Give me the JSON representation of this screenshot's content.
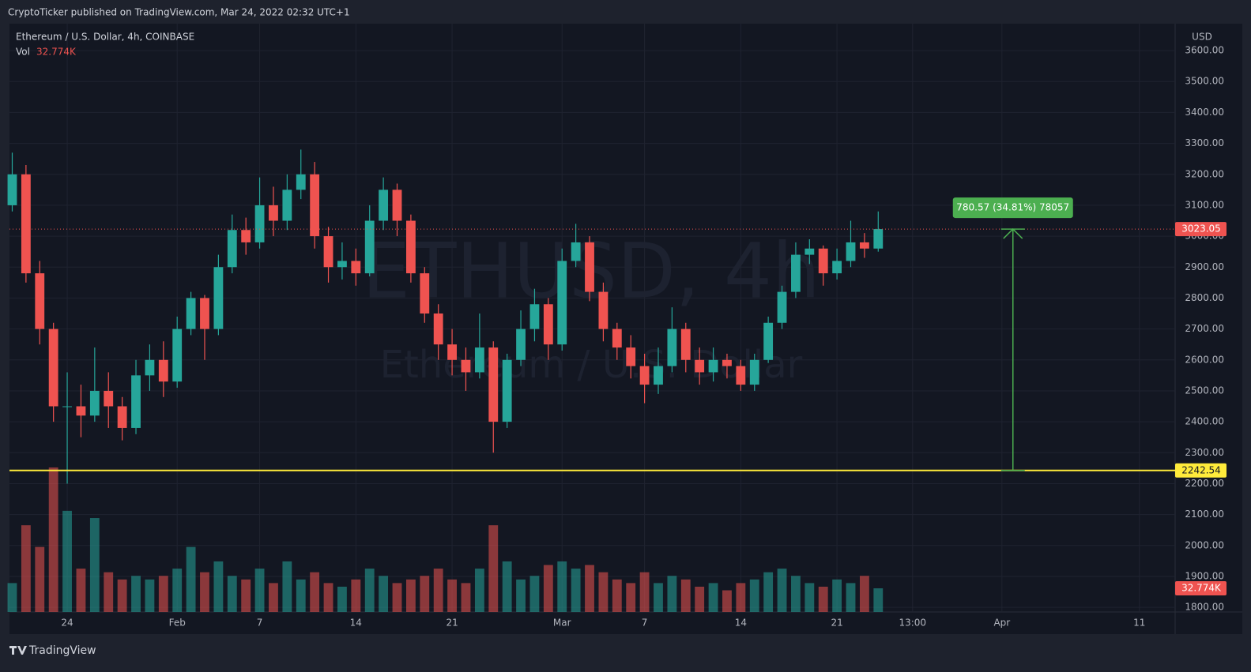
{
  "header": {
    "text": "CryptoTicker published on TradingView.com, Mar 24, 2022 02:32 UTC+1"
  },
  "footer": {
    "brand": "TradingView"
  },
  "chart_data": {
    "type": "candlestick",
    "title": "Ethereum / U.S. Dollar, 4h, COINBASE",
    "watermark": [
      "ETHUSD, 4h",
      "Ethereum / U.S. Dollar"
    ],
    "currency": "USD",
    "up_color": "#26a69a",
    "down_color": "#ef5350",
    "grid": true,
    "x": [
      -4,
      -3,
      -2,
      -1,
      0,
      1,
      2,
      3,
      4,
      5,
      6,
      7,
      8,
      9,
      10,
      11,
      12,
      13,
      14,
      15,
      16,
      17,
      18,
      19,
      20,
      21,
      22,
      23,
      24,
      25,
      26,
      27,
      28,
      29,
      30,
      31,
      32,
      33,
      34,
      35,
      36,
      37,
      38,
      39,
      40,
      41,
      42,
      43,
      44,
      45,
      46,
      47,
      48,
      49,
      50,
      51,
      52,
      53,
      54,
      55,
      56,
      57,
      58,
      59
    ],
    "open": [
      3100,
      3200,
      2880,
      2700,
      2450,
      2450,
      2420,
      2500,
      2450,
      2380,
      2550,
      2600,
      2530,
      2700,
      2800,
      2700,
      2900,
      3020,
      2980,
      3100,
      3050,
      3150,
      3200,
      3000,
      2900,
      2920,
      2880,
      3050,
      3150,
      3050,
      2880,
      2750,
      2650,
      2600,
      2560,
      2640,
      2400,
      2600,
      2700,
      2780,
      2650,
      2920,
      2980,
      2820,
      2700,
      2640,
      2580,
      2520,
      2580,
      2700,
      2600,
      2560,
      2600,
      2580,
      2520,
      2600,
      2720,
      2820,
      2940,
      2960,
      2880,
      2920,
      2980,
      2960
    ],
    "high": [
      3270,
      3230,
      2920,
      2720,
      2560,
      2520,
      2640,
      2560,
      2480,
      2600,
      2650,
      2660,
      2740,
      2820,
      2810,
      2940,
      3070,
      3060,
      3190,
      3160,
      3200,
      3280,
      3240,
      3030,
      2980,
      2960,
      3100,
      3190,
      3170,
      3070,
      2900,
      2780,
      2700,
      2640,
      2750,
      2660,
      2620,
      2760,
      2830,
      2800,
      2960,
      3040,
      3000,
      2850,
      2720,
      2680,
      2620,
      2640,
      2770,
      2720,
      2640,
      2640,
      2620,
      2600,
      2620,
      2740,
      2840,
      2980,
      2990,
      2970,
      2960,
      3050,
      3010,
      3080
    ],
    "low": [
      3080,
      2850,
      2650,
      2400,
      2200,
      2350,
      2400,
      2380,
      2340,
      2360,
      2500,
      2480,
      2510,
      2680,
      2600,
      2680,
      2880,
      2940,
      2960,
      3000,
      3020,
      3120,
      2960,
      2850,
      2860,
      2840,
      2870,
      3020,
      3000,
      2850,
      2720,
      2600,
      2550,
      2500,
      2540,
      2300,
      2380,
      2580,
      2660,
      2600,
      2630,
      2900,
      2790,
      2660,
      2600,
      2540,
      2460,
      2490,
      2560,
      2560,
      2520,
      2530,
      2540,
      2500,
      2500,
      2590,
      2700,
      2800,
      2910,
      2840,
      2860,
      2900,
      2930,
      2950
    ],
    "close": [
      3200,
      2880,
      2700,
      2450,
      2450,
      2420,
      2500,
      2450,
      2380,
      2550,
      2600,
      2530,
      2700,
      2800,
      2700,
      2900,
      3020,
      2980,
      3100,
      3050,
      3150,
      3200,
      3000,
      2900,
      2920,
      2880,
      3050,
      3150,
      3050,
      2880,
      2750,
      2650,
      2600,
      2560,
      2640,
      2400,
      2600,
      2700,
      2780,
      2650,
      2920,
      2980,
      2820,
      2700,
      2640,
      2580,
      2520,
      2580,
      2700,
      2600,
      2560,
      2600,
      2580,
      2520,
      2600,
      2720,
      2820,
      2940,
      2960,
      2880,
      2920,
      2980,
      2960,
      3023.05
    ],
    "volume": {
      "name": "Vol",
      "axis": "y2",
      "values": [
        40,
        120,
        90,
        200,
        140,
        60,
        130,
        55,
        45,
        50,
        45,
        50,
        60,
        90,
        55,
        70,
        50,
        45,
        60,
        40,
        70,
        45,
        55,
        40,
        35,
        45,
        60,
        50,
        40,
        45,
        50,
        60,
        45,
        40,
        60,
        120,
        70,
        45,
        50,
        65,
        70,
        60,
        65,
        55,
        45,
        40,
        55,
        40,
        50,
        45,
        35,
        40,
        30,
        40,
        45,
        55,
        60,
        50,
        40,
        35,
        45,
        40,
        50,
        32.774
      ],
      "value_labels": [
        null,
        null,
        null,
        null,
        null,
        null,
        null,
        null,
        null,
        null,
        null,
        null,
        null,
        null,
        null,
        null,
        null,
        null,
        null,
        null,
        null,
        null,
        null,
        null,
        null,
        null,
        null,
        null,
        null,
        null,
        null,
        null,
        null,
        null,
        null,
        null,
        null,
        null,
        null,
        null,
        null,
        null,
        null,
        null,
        null,
        null,
        null,
        null,
        null,
        null,
        null,
        null,
        null,
        null,
        null,
        null,
        null,
        null,
        null,
        null,
        null,
        null,
        null,
        "32.774K"
      ]
    },
    "last_price": 3023.05,
    "level": 2242.54,
    "level_color": "#ffeb3b",
    "measure": {
      "label": "780.57 (34.81%) 78057",
      "x": 68.8,
      "color": "#4caf50"
    },
    "xlim": [
      -4.2,
      80.6
    ],
    "xticks": [
      {
        "value": 0,
        "label": "24"
      },
      {
        "value": 8,
        "label": "Feb"
      },
      {
        "value": 14,
        "label": "7"
      },
      {
        "value": 21,
        "label": "14"
      },
      {
        "value": 28,
        "label": "21"
      },
      {
        "value": 36,
        "label": "Mar"
      },
      {
        "value": 42,
        "label": "7"
      },
      {
        "value": 49,
        "label": "14"
      },
      {
        "value": 56,
        "label": "21"
      },
      {
        "value": 61.5,
        "label": "13:00"
      },
      {
        "value": 68,
        "label": "Apr"
      },
      {
        "value": 78,
        "label": "11"
      }
    ],
    "ylim": [
      1785,
      3687
    ],
    "yticks": [
      {
        "value": 1800,
        "label": "1800.00"
      },
      {
        "value": 1900,
        "label": "1900.00"
      },
      {
        "value": 2000,
        "label": "2000.00"
      },
      {
        "value": 2100,
        "label": "2100.00"
      },
      {
        "value": 2200,
        "label": "2200.00"
      },
      {
        "value": 2300,
        "label": "2300.00"
      },
      {
        "value": 2400,
        "label": "2400.00"
      },
      {
        "value": 2500,
        "label": "2500.00"
      },
      {
        "value": 2600,
        "label": "2600.00"
      },
      {
        "value": 2700,
        "label": "2700.00"
      },
      {
        "value": 2800,
        "label": "2800.00"
      },
      {
        "value": 2900,
        "label": "2900.00"
      },
      {
        "value": 3000,
        "label": "3000.00"
      },
      {
        "value": 3100,
        "label": "3100.00"
      },
      {
        "value": 3200,
        "label": "3200.00"
      },
      {
        "value": 3300,
        "label": "3300.00"
      },
      {
        "value": 3400,
        "label": "3400.00"
      },
      {
        "value": 3500,
        "label": "3500.00"
      },
      {
        "value": 3600,
        "label": "3600.00"
      }
    ],
    "y2lim": [
      0,
      814
    ]
  }
}
